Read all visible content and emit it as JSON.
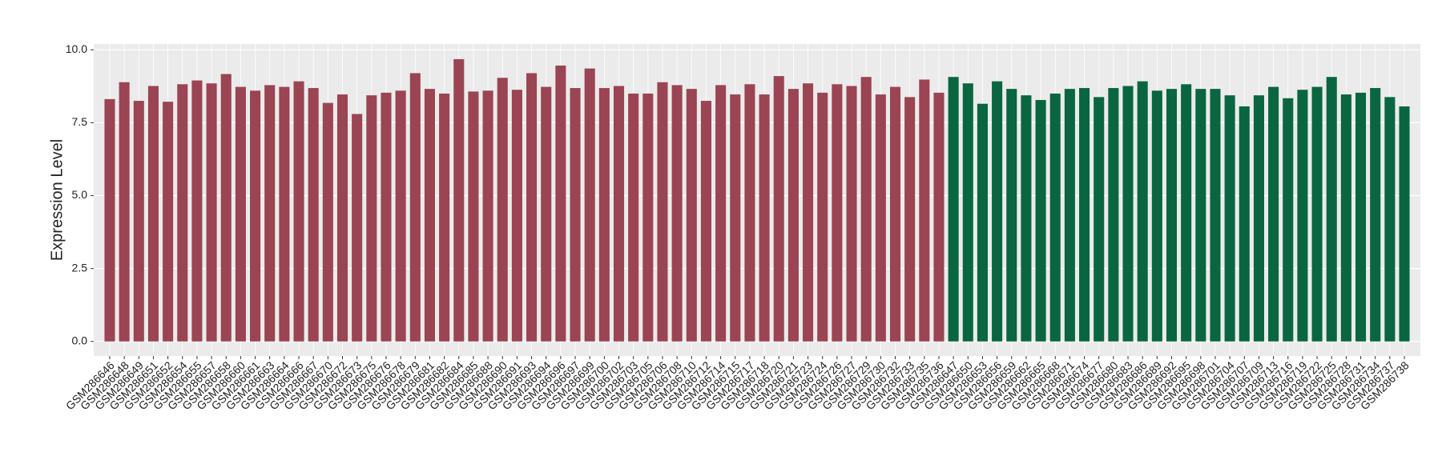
{
  "chart_data": {
    "type": "bar",
    "y_label": "Expression Level",
    "ylim": [
      -0.5,
      10.2
    ],
    "yticks": [
      {
        "value": 0,
        "label": "0.0"
      },
      {
        "value": 2.5,
        "label": "2.5"
      },
      {
        "value": 5,
        "label": "5.0"
      },
      {
        "value": 7.5,
        "label": "7.5"
      },
      {
        "value": 10,
        "label": "10.0"
      }
    ],
    "grid": true,
    "series": [
      {
        "color": "#9b4453",
        "categories": [
          "GSM286646",
          "GSM286648",
          "GSM286649",
          "GSM286651",
          "GSM286652",
          "GSM286654",
          "GSM286655",
          "GSM286657",
          "GSM286658",
          "GSM286660",
          "GSM286661",
          "GSM286663",
          "GSM286664",
          "GSM286666",
          "GSM286667",
          "GSM286670",
          "GSM286672",
          "GSM286673",
          "GSM286675",
          "GSM286676",
          "GSM286678",
          "GSM286679",
          "GSM286681",
          "GSM286682",
          "GSM286684",
          "GSM286685",
          "GSM286688",
          "GSM286690",
          "GSM286691",
          "GSM286693",
          "GSM286694",
          "GSM286696",
          "GSM286697",
          "GSM286699",
          "GSM286700",
          "GSM286702",
          "GSM286703",
          "GSM286705",
          "GSM286706",
          "GSM286708",
          "GSM286710",
          "GSM286712",
          "GSM286714",
          "GSM286715",
          "GSM286717",
          "GSM286718",
          "GSM286720",
          "GSM286721",
          "GSM286723",
          "GSM286724",
          "GSM286726",
          "GSM286727",
          "GSM286729",
          "GSM286730",
          "GSM286732",
          "GSM286733",
          "GSM286735",
          "GSM286736"
        ],
        "values": [
          8.31,
          8.89,
          8.25,
          8.76,
          8.22,
          8.82,
          8.95,
          8.85,
          9.17,
          8.73,
          8.6,
          8.79,
          8.73,
          8.92,
          8.69,
          8.18,
          8.47,
          7.8,
          8.44,
          8.53,
          8.6,
          9.2,
          8.66,
          8.5,
          9.68,
          8.57,
          8.6,
          9.04,
          8.63,
          9.2,
          8.73,
          9.46,
          8.69,
          9.36,
          8.69,
          8.76,
          8.5,
          8.5,
          8.89,
          8.79,
          8.66,
          8.25,
          8.79,
          8.47,
          8.82,
          8.47,
          9.1,
          8.66,
          8.85,
          8.53,
          8.82,
          8.76,
          9.07,
          8.47,
          8.73,
          8.38,
          8.98,
          8.53
        ]
      },
      {
        "color": "#0a6640",
        "categories": [
          "GSM286647",
          "GSM286650",
          "GSM286653",
          "GSM286656",
          "GSM286659",
          "GSM286662",
          "GSM286665",
          "GSM286668",
          "GSM286671",
          "GSM286674",
          "GSM286677",
          "GSM286680",
          "GSM286683",
          "GSM286686",
          "GSM286689",
          "GSM286692",
          "GSM286695",
          "GSM286698",
          "GSM286701",
          "GSM286704",
          "GSM286707",
          "GSM286709",
          "GSM286713",
          "GSM286716",
          "GSM286719",
          "GSM286722",
          "GSM286725",
          "GSM286728",
          "GSM286731",
          "GSM286734",
          "GSM286737",
          "GSM286738"
        ],
        "values": [
          9.07,
          8.85,
          8.15,
          8.92,
          8.66,
          8.44,
          8.28,
          8.5,
          8.66,
          8.69,
          8.38,
          8.69,
          8.76,
          8.92,
          8.6,
          8.66,
          8.82,
          8.66,
          8.66,
          8.44,
          8.06,
          8.44,
          8.73,
          8.34,
          8.63,
          8.73,
          9.07,
          8.47,
          8.53,
          8.69,
          8.38,
          8.06
        ]
      }
    ]
  }
}
